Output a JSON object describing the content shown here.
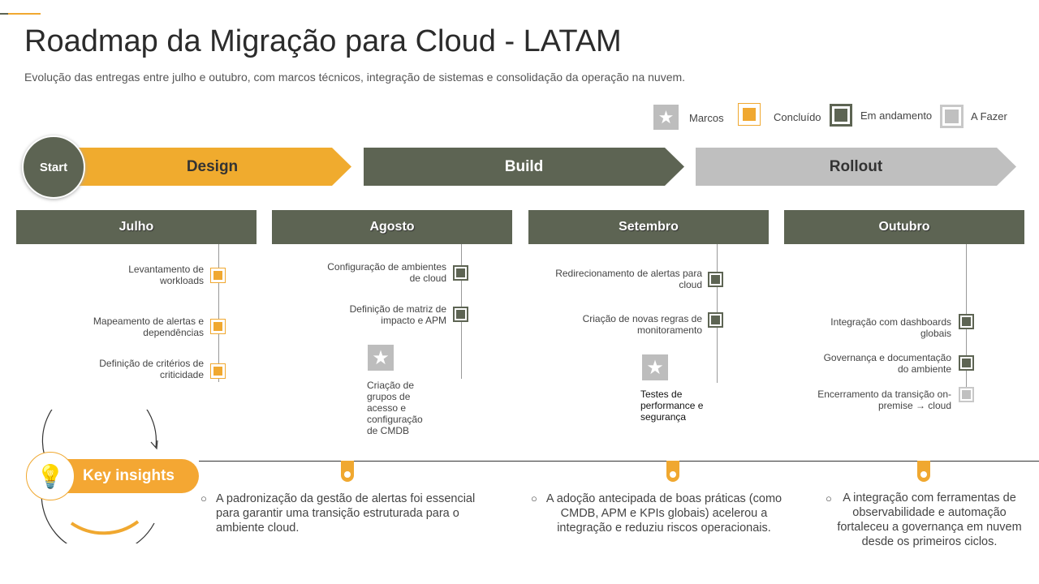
{
  "title": "Roadmap da Migração para Cloud - LATAM",
  "subtitle": "Evolução das entregas entre julho e outubro, com marcos técnicos, integração de sistemas e consolidação da operação na nuvem.",
  "legend": {
    "milestone": "Marcos",
    "done": "Concluído",
    "progress": "Em andamento",
    "todo": "A Fazer"
  },
  "colors": {
    "accent": "#f0a830",
    "dark": "#5d6453",
    "gray": "#bfbfbf"
  },
  "start": "Start",
  "phases": [
    "Design",
    "Build",
    "Rollout"
  ],
  "months": [
    {
      "name": "Julho",
      "tasks": [
        {
          "text": "Levantamento de workloads",
          "status": "done"
        },
        {
          "text": "Mapeamento de alertas e dependências",
          "status": "done"
        },
        {
          "text": "Definição de critérios de criticidade",
          "status": "done"
        }
      ]
    },
    {
      "name": "Agosto",
      "tasks": [
        {
          "text": "Configuração de ambientes de cloud",
          "status": "progress"
        },
        {
          "text": "Definição de matriz de impacto e APM",
          "status": "progress"
        }
      ],
      "milestone": "Criação de grupos de acesso e configuração de CMDB"
    },
    {
      "name": "Setembro",
      "tasks": [
        {
          "text": "Redirecionamento de alertas para cloud",
          "status": "progress"
        },
        {
          "text": "Criação de novas regras de monitoramento",
          "status": "progress"
        }
      ],
      "milestone": "Testes de performance e segurança"
    },
    {
      "name": "Outubro",
      "tasks": [
        {
          "text": "Integração com dashboards globais",
          "status": "progress"
        },
        {
          "text": "Governança e documentação do ambiente",
          "status": "progress"
        },
        {
          "text": "Encerramento da transição on-premise → cloud",
          "status": "todo"
        }
      ]
    }
  ],
  "insights_label": "Key insights",
  "insights": [
    "A padronização da gestão de alertas foi essencial para garantir uma transição estruturada para o ambiente cloud.",
    "A adoção antecipada de boas práticas (como CMDB, APM e KPIs globais) acelerou a integração e reduziu riscos operacionais.",
    "A integração com ferramentas de observabilidade e automação fortaleceu a governança em nuvem desde os primeiros ciclos."
  ]
}
